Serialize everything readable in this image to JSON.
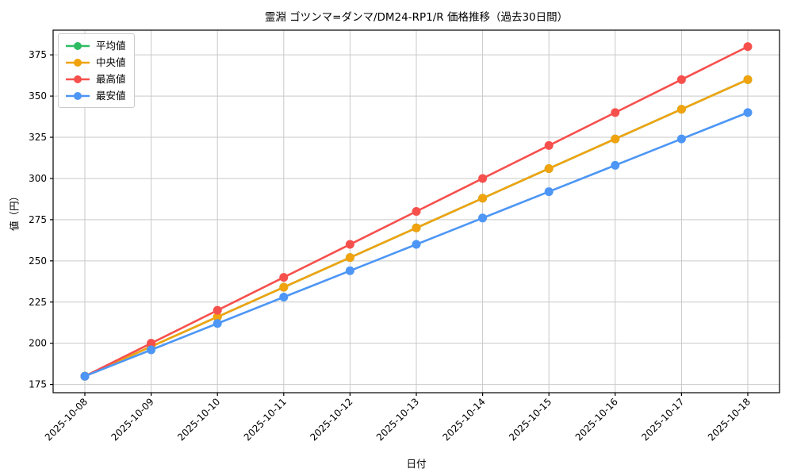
{
  "chart_data": {
    "type": "line",
    "title": "霊淵 ゴツンマ=ダンマ/DM24-RP1/R 価格推移（過去30日間）",
    "xlabel": "日付",
    "ylabel": "値（円）",
    "x": [
      "2025-10-08",
      "2025-10-09",
      "2025-10-10",
      "2025-10-11",
      "2025-10-12",
      "2025-10-13",
      "2025-10-14",
      "2025-10-15",
      "2025-10-16",
      "2025-10-17",
      "2025-10-18"
    ],
    "series": [
      {
        "name": "平均値",
        "key": "average",
        "color": "#2ebc62",
        "values": [
          180,
          198,
          216,
          234,
          252,
          270,
          288,
          306,
          324,
          342,
          360
        ]
      },
      {
        "name": "中央値",
        "key": "median",
        "color": "#f0a30f",
        "values": [
          180,
          198,
          216,
          234,
          252,
          270,
          288,
          306,
          324,
          342,
          360
        ]
      },
      {
        "name": "最高値",
        "key": "max",
        "color": "#f6504d",
        "values": [
          180,
          200,
          220,
          240,
          260,
          280,
          300,
          320,
          340,
          360,
          380
        ]
      },
      {
        "name": "最安値",
        "key": "min",
        "color": "#4d96f5",
        "values": [
          180,
          196,
          212,
          228,
          244,
          260,
          276,
          292,
          308,
          324,
          340
        ]
      }
    ],
    "yticks": [
      175,
      200,
      225,
      250,
      275,
      300,
      325,
      350,
      375
    ],
    "ylim": [
      170,
      390
    ],
    "grid": true,
    "grid_color": "#c9c9c9",
    "axis_color": "#000000",
    "legend_position": "upper left"
  }
}
